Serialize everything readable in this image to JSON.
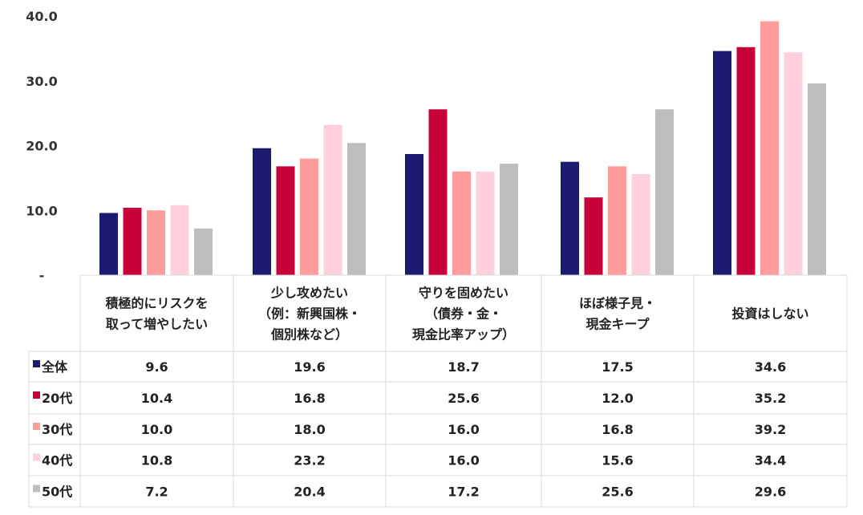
{
  "chart_data": {
    "type": "bar",
    "categories": [
      [
        "積極的にリスクを",
        "取って増やしたい"
      ],
      [
        "少し攻めたい",
        "（例：新興国株・",
        "個別株など）"
      ],
      [
        "守りを固めたい",
        "（債券・金・",
        "現金比率アップ）"
      ],
      [
        "ほぼ様子見・",
        "現金キープ"
      ],
      [
        "投資はしない"
      ]
    ],
    "series": [
      {
        "name": "全体",
        "color": "#1b1a6e",
        "values": [
          9.6,
          19.6,
          18.7,
          17.5,
          34.6
        ],
        "labels": [
          "9.6",
          "19.6",
          "18.7",
          "17.5",
          "34.6"
        ]
      },
      {
        "name": "20代",
        "color": "#c8003a",
        "values": [
          10.4,
          16.8,
          25.6,
          12.0,
          35.2
        ],
        "labels": [
          "10.4",
          "16.8",
          "25.6",
          "12.0",
          "35.2"
        ]
      },
      {
        "name": "30代",
        "color": "#ff9c9c",
        "values": [
          10.0,
          18.0,
          16.0,
          16.8,
          39.2
        ],
        "labels": [
          "10.0",
          "18.0",
          "16.0",
          "16.8",
          "39.2"
        ]
      },
      {
        "name": "40代",
        "color": "#ffcfdc",
        "values": [
          10.8,
          23.2,
          16.0,
          15.6,
          34.4
        ],
        "labels": [
          "10.8",
          "23.2",
          "16.0",
          "15.6",
          "34.4"
        ]
      },
      {
        "name": "50代",
        "color": "#bdbdbd",
        "values": [
          7.2,
          20.4,
          17.2,
          25.6,
          29.6
        ],
        "labels": [
          "7.2",
          "20.4",
          "17.2",
          "25.6",
          "29.6"
        ]
      }
    ],
    "ylim": [
      0,
      40
    ],
    "yticks": [
      {
        "value": 0,
        "label": "-"
      },
      {
        "value": 10,
        "label": "10.0"
      },
      {
        "value": 20,
        "label": "20.0"
      },
      {
        "value": 30,
        "label": "30.0"
      },
      {
        "value": 40,
        "label": "40.0"
      }
    ],
    "legend_placement": "data-table",
    "grid": false
  }
}
